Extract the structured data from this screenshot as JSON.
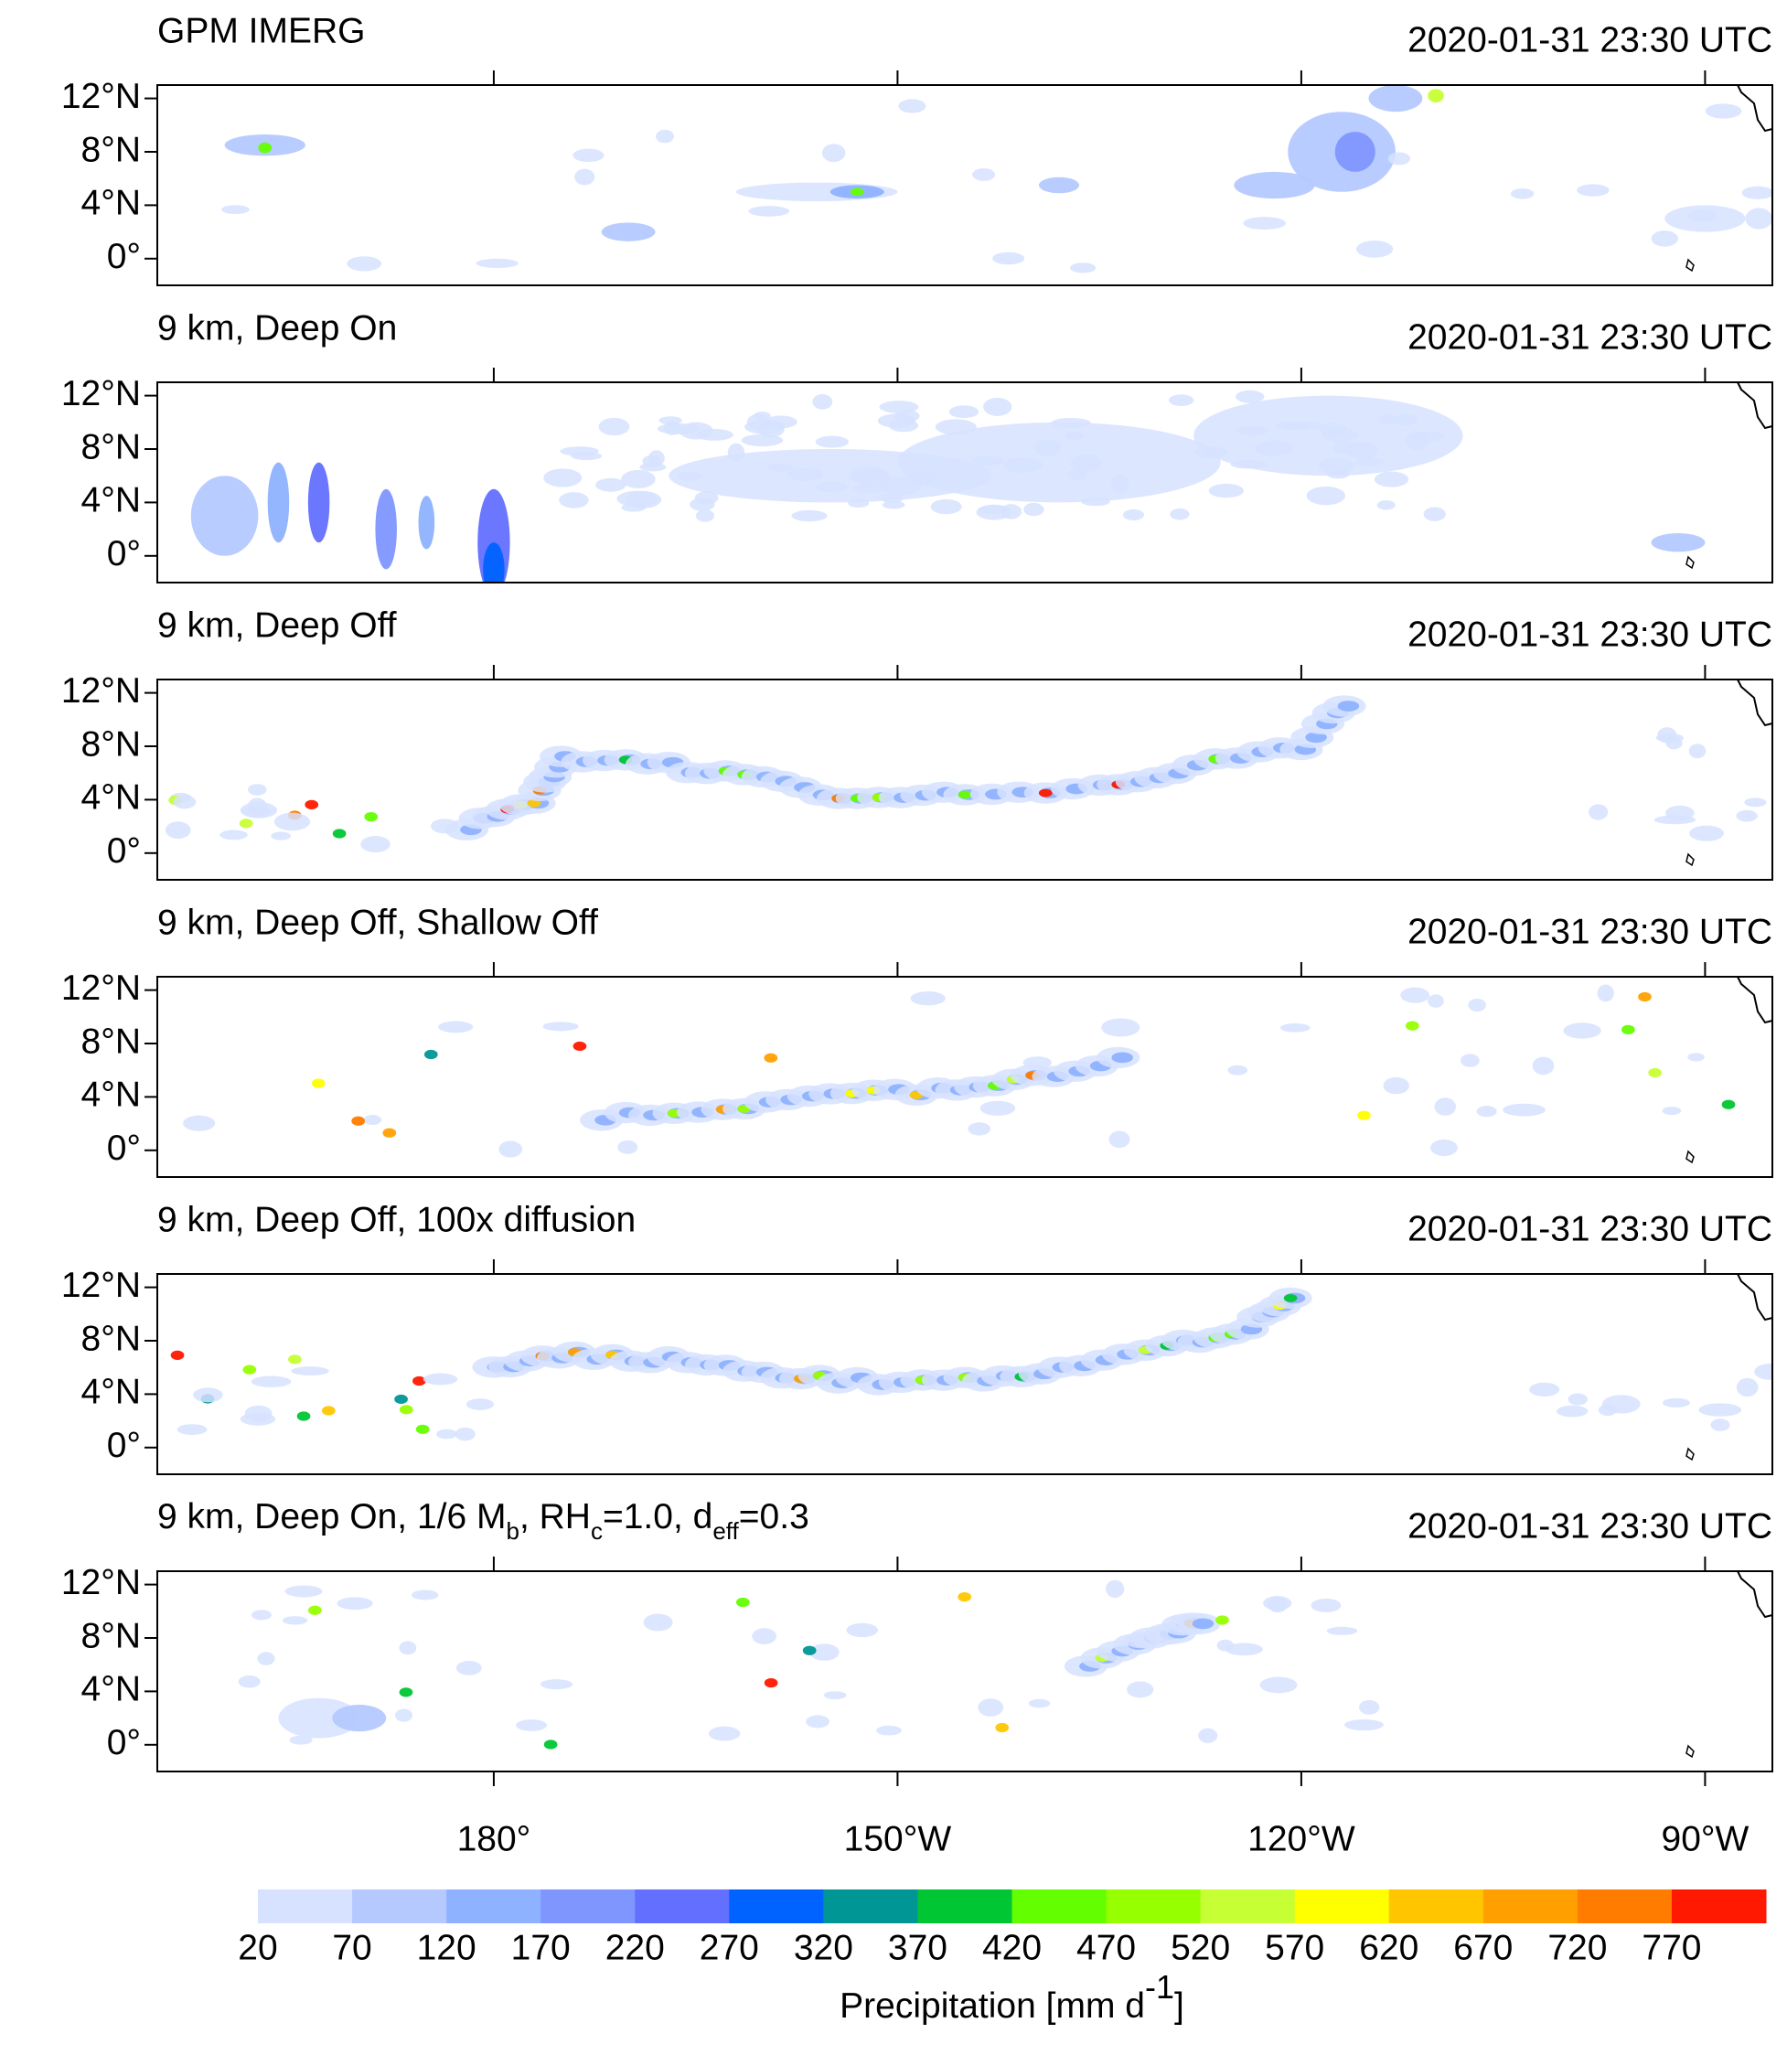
{
  "chart_data": {
    "type": "map",
    "panels": [
      {
        "title": "GPM IMERG",
        "time": "2020-01-31 23:30 UTC"
      },
      {
        "title": "9 km, Deep On",
        "time": "2020-01-31 23:30 UTC"
      },
      {
        "title": "9 km, Deep Off",
        "time": "2020-01-31 23:30 UTC"
      },
      {
        "title": "9 km, Deep Off, Shallow Off",
        "time": "2020-01-31 23:30 UTC"
      },
      {
        "title": "9 km, Deep Off, 100x diffusion",
        "time": "2020-01-31 23:30 UTC"
      },
      {
        "title_parts": [
          "9 km, Deep On, 1/6 M",
          "b",
          ", RH",
          "c",
          "=1.0, d",
          "eff",
          "=0.3"
        ],
        "time": "2020-01-31 23:30 UTC"
      }
    ],
    "xlim": [
      155,
      275
    ],
    "xticks": [
      {
        "value": 180,
        "label": "180°"
      },
      {
        "value": 210,
        "label": "150°W"
      },
      {
        "value": 240,
        "label": "120°W"
      },
      {
        "value": 270,
        "label": "90°W"
      }
    ],
    "ylim": [
      -2,
      13
    ],
    "yticks": [
      {
        "value": 0,
        "label": "0°"
      },
      {
        "value": 4,
        "label": "4°N"
      },
      {
        "value": 8,
        "label": "8°N"
      },
      {
        "value": 12,
        "label": "12°N"
      }
    ],
    "colorbar": {
      "levels": [
        20,
        70,
        120,
        170,
        220,
        270,
        320,
        370,
        420,
        470,
        520,
        570,
        620,
        670,
        720,
        770
      ],
      "colors": [
        "#d6e2ff",
        "#b5c9ff",
        "#8eb2ff",
        "#7f96ff",
        "#6370ff",
        "#0063ff",
        "#009696",
        "#00c633",
        "#63ff00",
        "#96ff00",
        "#c6ff33",
        "#ffff00",
        "#ffc600",
        "#ffa000",
        "#ff7c00",
        "#ff1900"
      ],
      "label_parts": [
        "Precipitation [mm d",
        "-1",
        "]"
      ]
    }
  }
}
